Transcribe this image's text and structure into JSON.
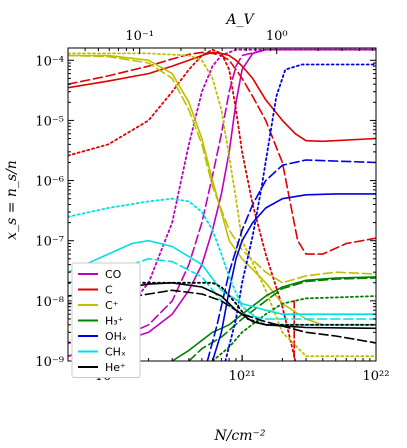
{
  "chart_data": {
    "type": "line",
    "xlabel": "N/cm⁻²",
    "ylabel": "x_s = n_s/n",
    "top_xlabel": "A_V",
    "xscale": "log",
    "yscale": "log",
    "xlim": [
      5e+19,
      1e+22
    ],
    "ylim": [
      1e-09,
      0.00016
    ],
    "top_xlim": [
      0.03,
      5.3
    ],
    "x_ticks": [
      {
        "value": 1e+20,
        "label": "10²⁰"
      },
      {
        "value": 1e+21,
        "label": "10²¹"
      },
      {
        "value": 1e+22,
        "label": "10²²"
      }
    ],
    "top_ticks": [
      {
        "value": 0.1,
        "label": "10⁻¹"
      },
      {
        "value": 1,
        "label": "10⁰"
      }
    ],
    "y_ticks": [
      {
        "value": 0.0001,
        "label": "10⁻⁴"
      },
      {
        "value": 1e-05,
        "label": "10⁻⁵"
      },
      {
        "value": 1e-06,
        "label": "10⁻⁶"
      },
      {
        "value": 1e-07,
        "label": "10⁻⁷"
      },
      {
        "value": 1e-08,
        "label": "10⁻⁸"
      },
      {
        "value": 1e-09,
        "label": "10⁻⁹"
      }
    ],
    "legend_position": "lower-left",
    "series": [
      {
        "name": "CO",
        "color": "#bf00bf",
        "solid": [
          [
            5e+19,
            1.2e-09
          ],
          [
            1e+20,
            1.8e-09
          ],
          [
            2e+20,
            3e-09
          ],
          [
            3e+20,
            6e-09
          ],
          [
            4e+20,
            1.5e-08
          ],
          [
            5e+20,
            4e-08
          ],
          [
            6e+20,
            1.5e-07
          ],
          [
            7e+20,
            6e-07
          ],
          [
            8e+20,
            3e-06
          ],
          [
            9e+20,
            2e-05
          ],
          [
            1e+21,
            7e-05
          ],
          [
            1.2e+21,
            0.00013
          ],
          [
            1.5e+21,
            0.00015
          ],
          [
            3e+21,
            0.00015
          ],
          [
            1e+22,
            0.00015
          ]
        ],
        "dashed": [
          [
            5e+19,
            1.2e-09
          ],
          [
            1e+20,
            2e-09
          ],
          [
            2e+20,
            4e-09
          ],
          [
            3e+20,
            1e-08
          ],
          [
            4e+20,
            4e-08
          ],
          [
            5e+20,
            2e-07
          ],
          [
            6e+20,
            1.2e-06
          ],
          [
            7e+20,
            6e-06
          ],
          [
            8e+20,
            3e-05
          ],
          [
            9e+20,
            8e-05
          ],
          [
            1e+21,
            0.00012
          ],
          [
            1.5e+21,
            0.00015
          ],
          [
            1e+22,
            0.00015
          ]
        ],
        "dotted": [
          [
            5e+19,
            2e-09
          ],
          [
            1e+20,
            3e-09
          ],
          [
            2e+20,
            2e-08
          ],
          [
            3e+20,
            2e-07
          ],
          [
            3.5e+20,
            1e-06
          ],
          [
            4e+20,
            4e-06
          ],
          [
            5e+20,
            3e-05
          ],
          [
            6e+20,
            8e-05
          ],
          [
            7e+20,
            0.00012
          ],
          [
            9e+20,
            0.00015
          ],
          [
            1e+22,
            0.00015
          ]
        ]
      },
      {
        "name": "C",
        "color": "#e00000",
        "solid": [
          [
            5e+19,
            3.5e-05
          ],
          [
            1e+20,
            4.5e-05
          ],
          [
            2e+20,
            6e-05
          ],
          [
            3e+20,
            8e-05
          ],
          [
            4e+20,
            0.0001
          ],
          [
            5e+20,
            0.00012
          ],
          [
            6e+20,
            0.000135
          ],
          [
            7e+20,
            0.00013
          ],
          [
            8e+20,
            0.00012
          ],
          [
            9e+20,
            0.0001
          ],
          [
            1e+21,
            8e-05
          ],
          [
            1.2e+21,
            5e-05
          ],
          [
            1.5e+21,
            2.2e-05
          ],
          [
            2e+21,
            1e-05
          ],
          [
            2.5e+21,
            6e-06
          ],
          [
            3e+21,
            4.6e-06
          ],
          [
            4e+21,
            4.5e-06
          ],
          [
            1e+22,
            5e-06
          ]
        ],
        "dashed": [
          [
            5e+19,
            4e-05
          ],
          [
            1e+20,
            5.5e-05
          ],
          [
            2e+20,
            8e-05
          ],
          [
            3e+20,
            0.000105
          ],
          [
            4e+20,
            0.000125
          ],
          [
            5e+20,
            0.000135
          ],
          [
            6e+20,
            0.00013
          ],
          [
            7e+20,
            0.00012
          ],
          [
            8e+20,
            0.0001
          ],
          [
            9e+20,
            7e-05
          ],
          [
            1e+21,
            5e-05
          ],
          [
            1.2e+21,
            2.5e-05
          ],
          [
            1.5e+21,
            1e-05
          ],
          [
            2e+21,
            2e-06
          ],
          [
            2.3e+21,
            4e-07
          ],
          [
            2.6e+21,
            1e-07
          ],
          [
            3e+21,
            6e-08
          ],
          [
            4e+21,
            6e-08
          ],
          [
            6e+21,
            9e-08
          ],
          [
            1e+22,
            1.1e-07
          ]
        ],
        "dotted": [
          [
            5e+19,
            2.6e-06
          ],
          [
            1e+20,
            4e-06
          ],
          [
            2e+20,
            1e-05
          ],
          [
            3e+20,
            3e-05
          ],
          [
            4e+20,
            7e-05
          ],
          [
            5e+20,
            0.00012
          ],
          [
            6e+20,
            0.00015
          ],
          [
            7e+20,
            0.00013
          ],
          [
            8e+20,
            7e-05
          ],
          [
            9e+20,
            1.5e-05
          ],
          [
            1e+21,
            3e-06
          ],
          [
            1.2e+21,
            4e-07
          ],
          [
            1.5e+21,
            6e-08
          ],
          [
            2e+21,
            8e-09
          ],
          [
            2.5e+21,
            1e-09
          ]
        ],
        "vertical": [
          [
            2.45e+21,
            1e-08
          ],
          [
            2.45e+21,
            1e-09
          ]
        ]
      },
      {
        "name": "C⁺",
        "color": "#bfbf00",
        "solid": [
          [
            5e+19,
            0.00012
          ],
          [
            1e+20,
            0.00012
          ],
          [
            2e+20,
            0.0001
          ],
          [
            3e+20,
            6e-05
          ],
          [
            4e+20,
            2e-05
          ],
          [
            5e+20,
            5e-06
          ],
          [
            6e+20,
            1e-06
          ],
          [
            7e+20,
            3e-07
          ],
          [
            8e+20,
            1e-07
          ],
          [
            1e+21,
            5e-08
          ],
          [
            1.5e+21,
            2e-08
          ],
          [
            2e+21,
            9e-09
          ],
          [
            3e+21,
            5e-09
          ],
          [
            4e+21,
            4e-09
          ],
          [
            1e+22,
            4e-09
          ]
        ],
        "dashed": [
          [
            5e+19,
            0.00012
          ],
          [
            1e+20,
            0.000115
          ],
          [
            2e+20,
            9e-05
          ],
          [
            3e+20,
            5e-05
          ],
          [
            4e+20,
            1.5e-05
          ],
          [
            5e+20,
            4e-06
          ],
          [
            6e+20,
            8e-07
          ],
          [
            8e+20,
            1.5e-07
          ],
          [
            1e+21,
            7e-08
          ],
          [
            1.5e+21,
            3e-08
          ],
          [
            2e+21,
            2e-08
          ],
          [
            3e+21,
            2.6e-08
          ],
          [
            5e+21,
            3e-08
          ],
          [
            1e+22,
            2.8e-08
          ]
        ],
        "dotted": [
          [
            5e+19,
            0.00013
          ],
          [
            2e+20,
            0.00013
          ],
          [
            4e+20,
            0.00012
          ],
          [
            5e+20,
            0.0001
          ],
          [
            6e+20,
            5e-05
          ],
          [
            7e+20,
            1.5e-05
          ],
          [
            8e+20,
            2.5e-06
          ],
          [
            9e+20,
            5e-07
          ],
          [
            1e+21,
            1e-07
          ],
          [
            1.5e+21,
            1.5e-08
          ],
          [
            2e+21,
            3e-09
          ],
          [
            3e+21,
            1.2e-09
          ],
          [
            1e+22,
            1.2e-09
          ]
        ]
      },
      {
        "name": "H₃⁺",
        "color": "#008000",
        "solid": [
          [
            3e+20,
            1e-09
          ],
          [
            4e+20,
            1.5e-09
          ],
          [
            5e+20,
            2.2e-09
          ],
          [
            6e+20,
            3e-09
          ],
          [
            8e+20,
            4e-09
          ],
          [
            1e+21,
            6e-09
          ],
          [
            1.5e+21,
            1.2e-08
          ],
          [
            2e+21,
            1.7e-08
          ],
          [
            3e+21,
            2.2e-08
          ],
          [
            5e+21,
            2.4e-08
          ],
          [
            1e+22,
            2.5e-08
          ]
        ],
        "dashed": [
          [
            4e+20,
            1e-09
          ],
          [
            5e+20,
            1.6e-09
          ],
          [
            7e+20,
            2.5e-09
          ],
          [
            1e+21,
            5e-09
          ],
          [
            1.5e+21,
            1e-08
          ],
          [
            2e+21,
            1.6e-08
          ],
          [
            3e+21,
            2.1e-08
          ],
          [
            5e+21,
            2.3e-08
          ],
          [
            1e+22,
            2.4e-08
          ]
        ],
        "dotted": [
          [
            6e+20,
            1e-09
          ],
          [
            8e+20,
            1.7e-09
          ],
          [
            1e+21,
            3e-09
          ],
          [
            1.5e+21,
            6e-09
          ],
          [
            2e+21,
            9e-09
          ],
          [
            3e+21,
            1.1e-08
          ],
          [
            1e+22,
            1.2e-08
          ]
        ]
      },
      {
        "name": "OHₓ",
        "color": "#0000e0",
        "solid": [
          [
            6e+20,
            1e-09
          ],
          [
            7e+20,
            3e-09
          ],
          [
            8e+20,
            1.5e-08
          ],
          [
            9e+20,
            5e-08
          ],
          [
            1e+21,
            1e-07
          ],
          [
            1.2e+21,
            2e-07
          ],
          [
            1.5e+21,
            3.5e-07
          ],
          [
            2e+21,
            5e-07
          ],
          [
            3e+21,
            5.8e-07
          ],
          [
            5e+21,
            6e-07
          ],
          [
            1e+22,
            6e-07
          ]
        ],
        "dashed": [
          [
            5.5e+20,
            1e-09
          ],
          [
            6.5e+20,
            4e-09
          ],
          [
            8e+20,
            3e-08
          ],
          [
            1e+21,
            1.5e-07
          ],
          [
            1.2e+21,
            4e-07
          ],
          [
            1.5e+21,
            1e-06
          ],
          [
            2e+21,
            1.8e-06
          ],
          [
            3e+21,
            2.2e-06
          ],
          [
            1e+22,
            2e-06
          ]
        ],
        "dotted": [
          [
            7.5e+20,
            1e-09
          ],
          [
            9e+20,
            5e-09
          ],
          [
            1e+21,
            2e-08
          ],
          [
            1.2e+21,
            1.2e-07
          ],
          [
            1.4e+21,
            8e-07
          ],
          [
            1.6e+21,
            5e-06
          ],
          [
            1.8e+21,
            2.5e-05
          ],
          [
            2.1e+21,
            7e-05
          ],
          [
            2.8e+21,
            8.5e-05
          ],
          [
            1e+22,
            8.5e-05
          ]
        ]
      },
      {
        "name": "CHₓ",
        "color": "#00e0e0",
        "solid": [
          [
            5e+19,
            3e-08
          ],
          [
            1e+20,
            6e-08
          ],
          [
            1.5e+20,
            9e-08
          ],
          [
            2e+20,
            1e-07
          ],
          [
            3e+20,
            8e-08
          ],
          [
            5e+20,
            4e-08
          ],
          [
            7e+20,
            1.5e-08
          ],
          [
            1e+21,
            9e-09
          ],
          [
            1.5e+21,
            7e-09
          ],
          [
            2e+21,
            6e-09
          ],
          [
            1e+22,
            6e-09
          ]
        ],
        "dashed": [
          [
            5e+19,
            2e-08
          ],
          [
            1e+20,
            3e-08
          ],
          [
            2e+20,
            5e-08
          ],
          [
            3e+20,
            4.5e-08
          ],
          [
            5e+20,
            2.5e-08
          ],
          [
            7e+20,
            1e-08
          ],
          [
            1e+21,
            6e-09
          ],
          [
            1.5e+21,
            5e-09
          ],
          [
            1e+22,
            5e-09
          ]
        ],
        "dotted": [
          [
            5e+19,
            2.5e-07
          ],
          [
            1e+20,
            3.5e-07
          ],
          [
            2e+20,
            4.5e-07
          ],
          [
            3e+20,
            5e-07
          ],
          [
            4e+20,
            4.5e-07
          ],
          [
            5e+20,
            3e-07
          ],
          [
            6e+20,
            1.5e-07
          ],
          [
            7e+20,
            6e-08
          ],
          [
            8e+20,
            2.5e-08
          ],
          [
            1e+21,
            8e-09
          ],
          [
            1.5e+21,
            4e-09
          ],
          [
            1e+22,
            4e-09
          ]
        ]
      },
      {
        "name": "He⁺",
        "color": "#000000",
        "solid": [
          [
            5e+19,
            1.2e-08
          ],
          [
            1e+20,
            1.5e-08
          ],
          [
            2e+20,
            1.9e-08
          ],
          [
            3e+20,
            2e-08
          ],
          [
            5e+20,
            1.7e-08
          ],
          [
            7e+20,
            1.2e-08
          ],
          [
            9e+20,
            7e-09
          ],
          [
            1.2e+21,
            4.5e-09
          ],
          [
            1.5e+21,
            4e-09
          ],
          [
            3e+21,
            3.6e-09
          ],
          [
            1e+22,
            3.5e-09
          ]
        ],
        "dashed": [
          [
            5e+19,
            9e-09
          ],
          [
            1e+20,
            1e-08
          ],
          [
            2e+20,
            1.3e-08
          ],
          [
            3e+20,
            1.5e-08
          ],
          [
            5e+20,
            1.3e-08
          ],
          [
            7e+20,
            1e-08
          ],
          [
            1e+21,
            6e-09
          ],
          [
            1.5e+21,
            4.5e-09
          ],
          [
            3e+21,
            3e-09
          ],
          [
            5e+21,
            2.6e-09
          ],
          [
            1e+22,
            2e-09
          ]
        ],
        "dotted": [
          [
            5e+19,
            2e-08
          ],
          [
            2e+20,
            2e-08
          ],
          [
            4e+20,
            2e-08
          ],
          [
            6e+20,
            2e-08
          ],
          [
            7e+20,
            1.7e-08
          ],
          [
            9e+20,
            9e-09
          ],
          [
            1.1e+21,
            5e-09
          ],
          [
            1.5e+21,
            4e-09
          ],
          [
            1e+22,
            4e-09
          ]
        ]
      }
    ]
  }
}
